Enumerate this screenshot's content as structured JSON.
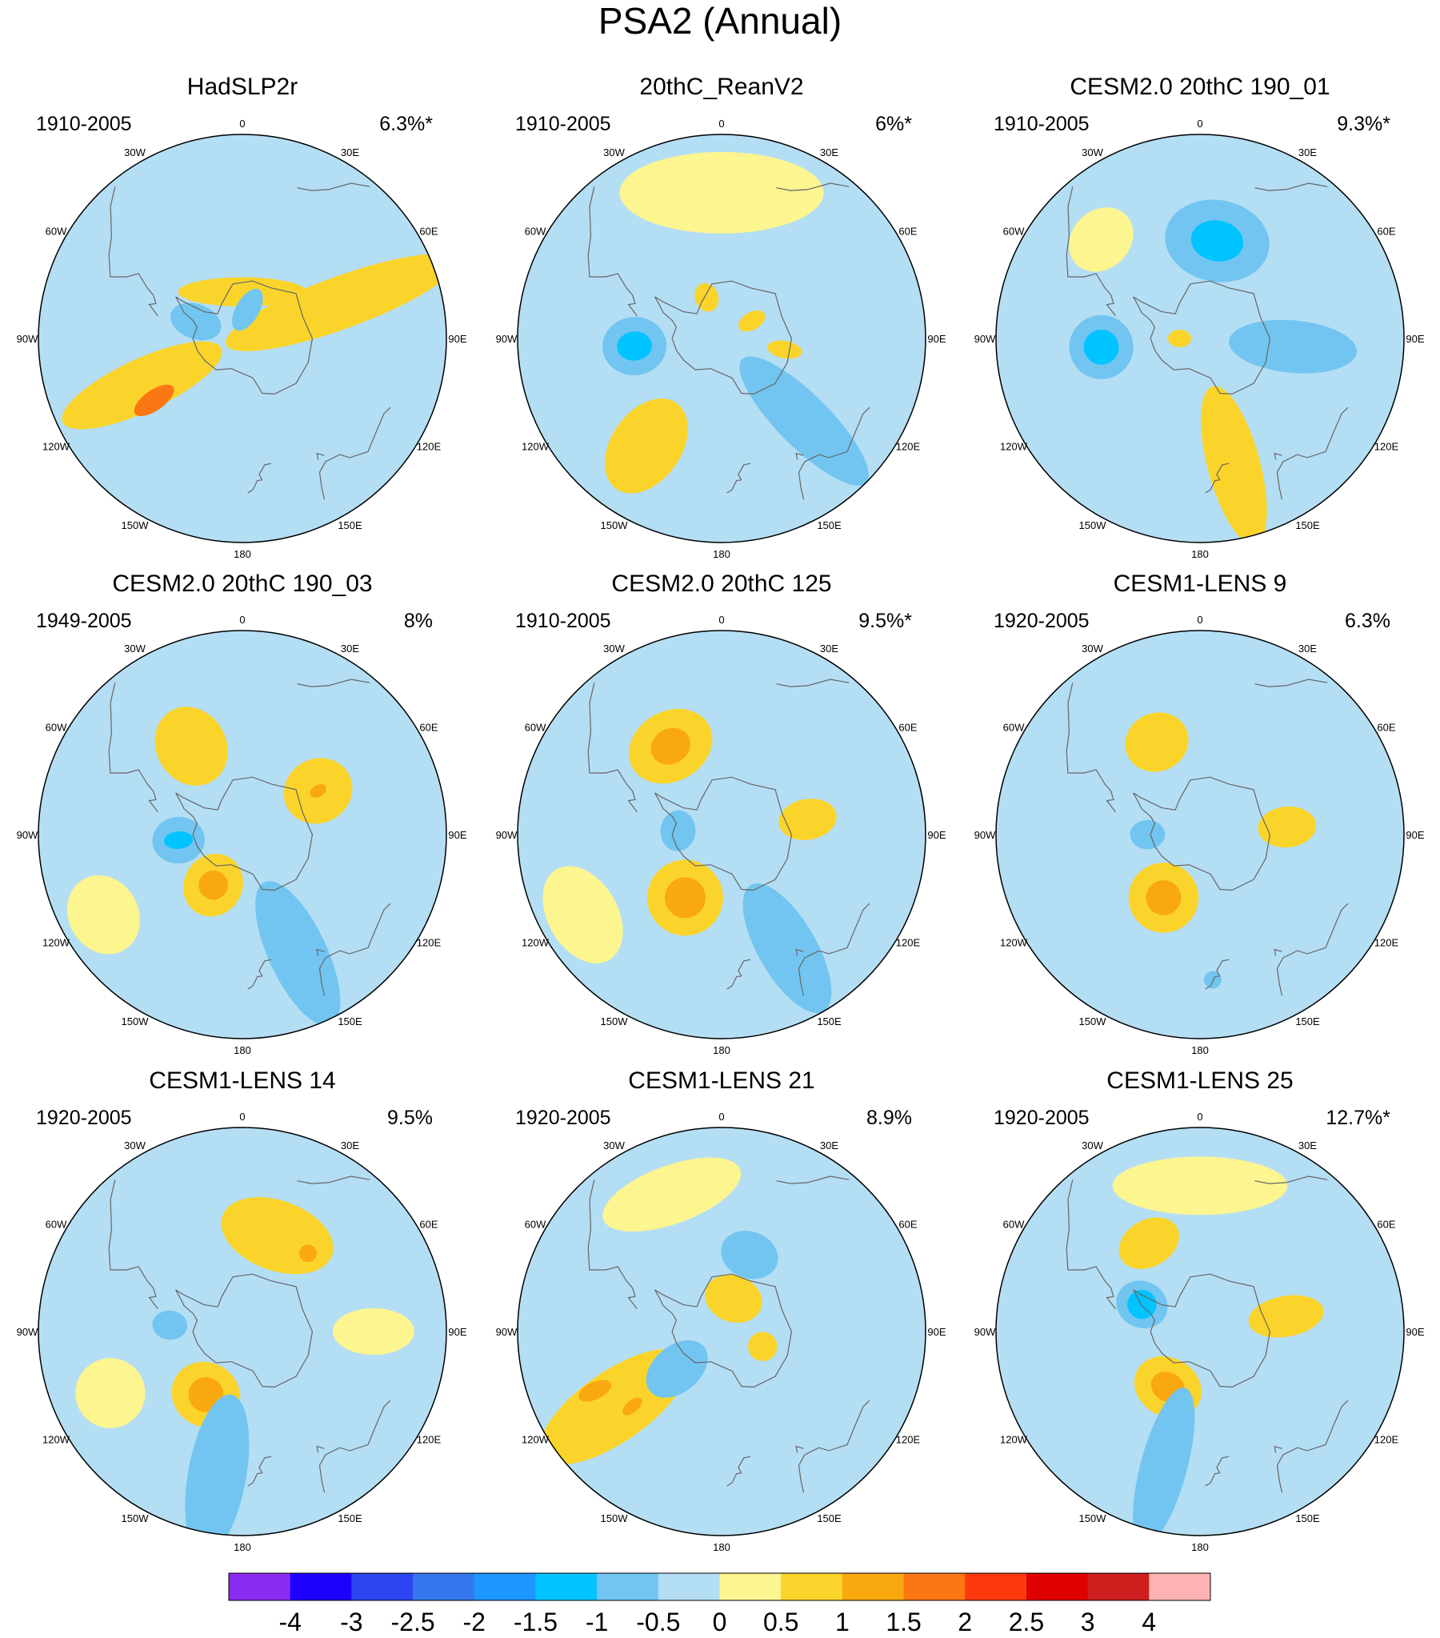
{
  "figure": {
    "title": "PSA2 (Annual)",
    "longitude_labels": [
      "0",
      "30E",
      "60E",
      "90E",
      "120E",
      "150E",
      "180",
      "150W",
      "120W",
      "90W",
      "60W",
      "30W"
    ]
  },
  "colorbar": {
    "colors": [
      "#8a2bf0",
      "#1e00ff",
      "#2d45f0",
      "#3578ee",
      "#1e96ff",
      "#00c3ff",
      "#72c5f0",
      "#b4def4",
      "#fcf590",
      "#fad42a",
      "#f9a80e",
      "#fb7713",
      "#fd3a0e",
      "#e10000",
      "#ce1e1e",
      "#fdb3b3"
    ],
    "tick_labels": [
      "-4",
      "-3",
      "-2.5",
      "-2",
      "-1.5",
      "-1",
      "-0.5",
      "0",
      "0.5",
      "1",
      "1.5",
      "2",
      "2.5",
      "3",
      "4"
    ]
  },
  "panels": [
    {
      "id": "hadslp2r",
      "title": "HadSLP2r",
      "period": "1910-2005",
      "variance": "6.3%*",
      "blobs": [
        {
          "lon": 70,
          "lat": -54,
          "rx": 9,
          "ry": 42,
          "rot": 0,
          "level": 1
        },
        {
          "lon": -115,
          "lat": -52,
          "rx": 9,
          "ry": 30,
          "rot": 0,
          "level": 1
        },
        {
          "lon": -125,
          "lat": -53,
          "rx": 3.5,
          "ry": 8,
          "rot": 0,
          "level": 2
        },
        {
          "lon": 0,
          "lat": -74,
          "rx": 22,
          "ry": 5,
          "rot": 0,
          "level": 1
        },
        {
          "lon": -70,
          "lat": -73,
          "rx": 6,
          "ry": 9,
          "rot": 0,
          "level": -1
        },
        {
          "lon": 10,
          "lat": -80,
          "rx": 4,
          "ry": 8,
          "rot": 20,
          "level": -1
        },
        {
          "lon": 155,
          "lat": -40,
          "rx": 14,
          "ry": 11,
          "rot": 0,
          "level": -0.5
        },
        {
          "lon": -30,
          "lat": -35,
          "rx": 18,
          "ry": 12,
          "rot": 0,
          "level": -0.5
        }
      ]
    },
    {
      "id": "20thc_reanv2",
      "title": "20thC_ReanV2",
      "period": "1910-2005",
      "variance": "6%*",
      "blobs": [
        {
          "lon": -95,
          "lat": -60,
          "rx": 10,
          "ry": 11,
          "rot": 0,
          "level": -1
        },
        {
          "lon": -95,
          "lat": -60,
          "rx": 5,
          "ry": 6,
          "rot": 0,
          "level": -1.5
        },
        {
          "lon": -145,
          "lat": -45,
          "rx": 12,
          "ry": 18,
          "rot": 0,
          "level": 1
        },
        {
          "lon": 135,
          "lat": -50,
          "rx": 9,
          "ry": 30,
          "rot": 0,
          "level": -1
        },
        {
          "lon": -20,
          "lat": -75,
          "rx": 4,
          "ry": 5,
          "rot": 0,
          "level": 1
        },
        {
          "lon": 60,
          "lat": -78,
          "rx": 3,
          "ry": 5,
          "rot": 0,
          "level": 1
        },
        {
          "lon": 100,
          "lat": -68,
          "rx": 3,
          "ry": 6,
          "rot": 0,
          "level": 1
        },
        {
          "lon": 0,
          "lat": -40,
          "rx": 35,
          "ry": 14,
          "rot": 0,
          "level": 0.5
        }
      ]
    },
    {
      "id": "cesm2_190_01",
      "title": "CESM2.0 20thC 190_01",
      "period": "1910-2005",
      "variance": "9.3%*",
      "blobs": [
        {
          "lon": 10,
          "lat": -56,
          "rx": 18,
          "ry": 14,
          "rot": 0,
          "level": -1
        },
        {
          "lon": 10,
          "lat": -56,
          "rx": 9,
          "ry": 7,
          "rot": 0,
          "level": -1.5
        },
        {
          "lon": -95,
          "lat": -56,
          "rx": 11,
          "ry": 11,
          "rot": 0,
          "level": -1
        },
        {
          "lon": -95,
          "lat": -56,
          "rx": 6,
          "ry": 6,
          "rot": 0,
          "level": -1.5
        },
        {
          "lon": 95,
          "lat": -58,
          "rx": 9,
          "ry": 22,
          "rot": 0,
          "level": -1
        },
        {
          "lon": 165,
          "lat": -45,
          "rx": 9,
          "ry": 28,
          "rot": 0,
          "level": 1
        },
        {
          "lon": -45,
          "lat": -42,
          "rx": 12,
          "ry": 10,
          "rot": 0,
          "level": 0.5
        },
        {
          "lon": -90,
          "lat": -83,
          "rx": 3,
          "ry": 4,
          "rot": 0,
          "level": 1
        }
      ]
    },
    {
      "id": "cesm2_190_03",
      "title": "CESM2.0 20thC 190_03",
      "period": "1949-2005",
      "variance": "8%",
      "blobs": [
        {
          "lon": -30,
          "lat": -55,
          "rx": 12,
          "ry": 14,
          "rot": 0,
          "level": 1
        },
        {
          "lon": 60,
          "lat": -60,
          "rx": 11,
          "ry": 12,
          "rot": 0,
          "level": 1
        },
        {
          "lon": 60,
          "lat": -60,
          "rx": 2,
          "ry": 3,
          "rot": 0,
          "level": 1.5
        },
        {
          "lon": -95,
          "lat": -68,
          "rx": 8,
          "ry": 9,
          "rot": 0,
          "level": -1
        },
        {
          "lon": -95,
          "lat": -68,
          "rx": 3,
          "ry": 5,
          "rot": 0,
          "level": -1.5
        },
        {
          "lon": -150,
          "lat": -70,
          "rx": 10,
          "ry": 11,
          "rot": 0,
          "level": 1
        },
        {
          "lon": -150,
          "lat": -70,
          "rx": 5,
          "ry": 5,
          "rot": 0,
          "level": 1.5
        },
        {
          "lon": 155,
          "lat": -45,
          "rx": 10,
          "ry": 27,
          "rot": 0,
          "level": -1
        },
        {
          "lon": -120,
          "lat": -35,
          "rx": 14,
          "ry": 12,
          "rot": 0,
          "level": 0.5
        }
      ]
    },
    {
      "id": "cesm2_125",
      "title": "CESM2.0 20thC 125",
      "period": "1910-2005",
      "variance": "9.5%*",
      "blobs": [
        {
          "lon": -30,
          "lat": -55,
          "rx": 15,
          "ry": 12,
          "rot": 0,
          "level": 1
        },
        {
          "lon": -30,
          "lat": -55,
          "rx": 7,
          "ry": 6,
          "rot": 0,
          "level": 1.5
        },
        {
          "lon": 80,
          "lat": -60,
          "rx": 7,
          "ry": 10,
          "rot": 0,
          "level": 1
        },
        {
          "lon": -85,
          "lat": -75,
          "rx": 7,
          "ry": 6,
          "rot": 0,
          "level": -1
        },
        {
          "lon": -150,
          "lat": -65,
          "rx": 13,
          "ry": 13,
          "rot": 0,
          "level": 1
        },
        {
          "lon": -150,
          "lat": -65,
          "rx": 7,
          "ry": 7,
          "rot": 0,
          "level": 1.5
        },
        {
          "lon": 150,
          "lat": -45,
          "rx": 10,
          "ry": 25,
          "rot": 0,
          "level": -1
        },
        {
          "lon": -120,
          "lat": -35,
          "rx": 18,
          "ry": 12,
          "rot": 0,
          "level": 0.5
        }
      ]
    },
    {
      "id": "cesm1_lens_9",
      "title": "CESM1-LENS 9",
      "period": "1920-2005",
      "variance": "6.3%",
      "blobs": [
        {
          "lon": -25,
          "lat": -55,
          "rx": 11,
          "ry": 10,
          "rot": 0,
          "level": 1
        },
        {
          "lon": 85,
          "lat": -60,
          "rx": 7,
          "ry": 10,
          "rot": 0,
          "level": 1
        },
        {
          "lon": -90,
          "lat": -72,
          "rx": 5,
          "ry": 6,
          "rot": 0,
          "level": -1
        },
        {
          "lon": -150,
          "lat": -65,
          "rx": 12,
          "ry": 12,
          "rot": 0,
          "level": 1
        },
        {
          "lon": -150,
          "lat": -65,
          "rx": 6,
          "ry": 6,
          "rot": 0,
          "level": 1.5
        },
        {
          "lon": 175,
          "lat": -40,
          "rx": 3,
          "ry": 3,
          "rot": 0,
          "level": -1
        }
      ]
    },
    {
      "id": "cesm1_lens_14",
      "title": "CESM1-LENS 14",
      "period": "1920-2005",
      "variance": "9.5%",
      "blobs": [
        {
          "lon": 20,
          "lat": -55,
          "rx": 20,
          "ry": 12,
          "rot": 0,
          "level": 1
        },
        {
          "lon": 40,
          "lat": -55,
          "rx": 3,
          "ry": 3,
          "rot": 0,
          "level": 1.5
        },
        {
          "lon": -85,
          "lat": -65,
          "rx": 5,
          "ry": 6,
          "rot": 0,
          "level": -1
        },
        {
          "lon": -150,
          "lat": -65,
          "rx": 12,
          "ry": 11,
          "rot": 0,
          "level": 1
        },
        {
          "lon": -150,
          "lat": -65,
          "rx": 6,
          "ry": 6,
          "rot": 0,
          "level": 1.5
        },
        {
          "lon": -170,
          "lat": -40,
          "rx": 10,
          "ry": 28,
          "rot": 0,
          "level": -1
        },
        {
          "lon": -115,
          "lat": -40,
          "rx": 12,
          "ry": 12,
          "rot": 0,
          "level": 0.5
        },
        {
          "lon": 90,
          "lat": -45,
          "rx": 8,
          "ry": 14,
          "rot": 0,
          "level": 0.5
        }
      ]
    },
    {
      "id": "cesm1_lens_21",
      "title": "CESM1-LENS 21",
      "period": "1920-2005",
      "variance": "8.9%",
      "blobs": [
        {
          "lon": -125,
          "lat": -45,
          "rx": 12,
          "ry": 30,
          "rot": 0,
          "level": 1
        },
        {
          "lon": -115,
          "lat": -42,
          "rx": 3,
          "ry": 6,
          "rot": 0,
          "level": 1.5
        },
        {
          "lon": -130,
          "lat": -50,
          "rx": 2,
          "ry": 4,
          "rot": 0,
          "level": 1.5
        },
        {
          "lon": 20,
          "lat": -62,
          "rx": 10,
          "ry": 8,
          "rot": 0,
          "level": -1
        },
        {
          "lon": -130,
          "lat": -70,
          "rx": 8,
          "ry": 12,
          "rot": 0,
          "level": -1
        },
        {
          "lon": 20,
          "lat": -78,
          "rx": 10,
          "ry": 8,
          "rot": 0,
          "level": 1
        },
        {
          "lon": 110,
          "lat": -75,
          "rx": 5,
          "ry": 5,
          "rot": 0,
          "level": 1
        },
        {
          "lon": -20,
          "lat": -40,
          "rx": 25,
          "ry": 10,
          "rot": 0,
          "level": 0.5
        }
      ]
    },
    {
      "id": "cesm1_lens_25",
      "title": "CESM1-LENS 25",
      "period": "1920-2005",
      "variance": "12.7%*",
      "blobs": [
        {
          "lon": -30,
          "lat": -55,
          "rx": 11,
          "ry": 8,
          "rot": 0,
          "level": 1
        },
        {
          "lon": 80,
          "lat": -60,
          "rx": 7,
          "ry": 13,
          "rot": 0,
          "level": 1
        },
        {
          "lon": -65,
          "lat": -68,
          "rx": 8,
          "ry": 9,
          "rot": 0,
          "level": -1
        },
        {
          "lon": -65,
          "lat": -68,
          "rx": 5,
          "ry": 5,
          "rot": 0,
          "level": -1.5
        },
        {
          "lon": -150,
          "lat": -68,
          "rx": 12,
          "ry": 10,
          "rot": 0,
          "level": 1
        },
        {
          "lon": -150,
          "lat": -68,
          "rx": 6,
          "ry": 5,
          "rot": 0,
          "level": 1.5
        },
        {
          "lon": -165,
          "lat": -42,
          "rx": 8,
          "ry": 28,
          "rot": 0,
          "level": -1
        },
        {
          "lon": 0,
          "lat": -40,
          "rx": 30,
          "ry": 10,
          "rot": 0,
          "level": 0.5
        }
      ]
    }
  ]
}
